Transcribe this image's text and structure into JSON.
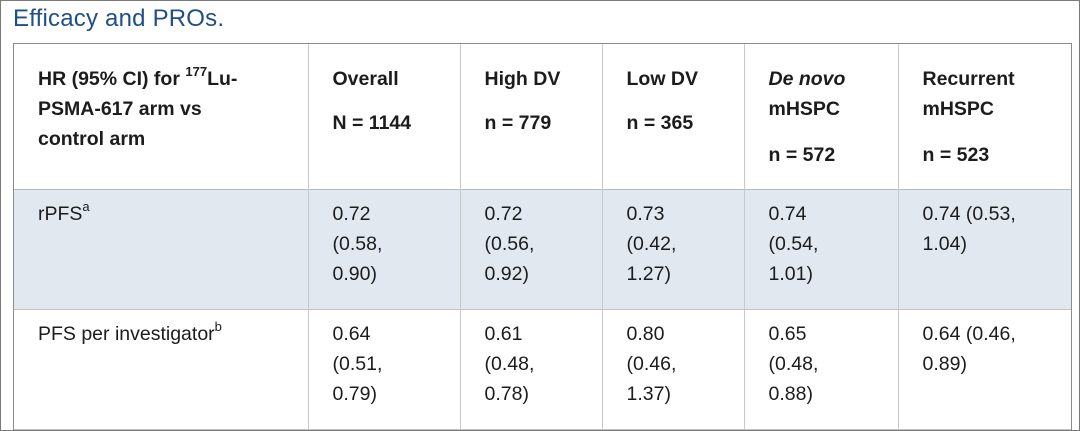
{
  "page": {
    "title": "Efficacy and PROs."
  },
  "table": {
    "header": {
      "col0": {
        "line1_pre": "HR (95% CI) for ",
        "line1_sup": "177",
        "line1_post": "Lu-",
        "line2": "PSMA-617 arm vs",
        "line3": "control arm"
      },
      "col1": {
        "label": "Overall",
        "n": "N = 1144"
      },
      "col2": {
        "label": "High DV",
        "n": "n = 779"
      },
      "col3": {
        "label": "Low DV",
        "n": "n = 365"
      },
      "col4": {
        "label_italic": "De novo",
        "label2": "mHSPC",
        "n": "n = 572"
      },
      "col5": {
        "label": "Recurrent",
        "label2": "mHSPC",
        "n": "n = 523"
      }
    },
    "rows": [
      {
        "label": "rPFS",
        "sup": "a",
        "cells": [
          [
            "0.72",
            "(0.58,",
            "0.90)"
          ],
          [
            "0.72",
            "(0.56,",
            "0.92)"
          ],
          [
            "0.73",
            "(0.42,",
            "1.27)"
          ],
          [
            "0.74",
            "(0.54,",
            "1.01)"
          ],
          [
            "0.74 (0.53,",
            "1.04)",
            ""
          ]
        ]
      },
      {
        "label": "PFS per investigator",
        "sup": "b",
        "cells": [
          [
            "0.64",
            "(0.51,",
            "0.79)"
          ],
          [
            "0.61",
            "(0.48,",
            "0.78)"
          ],
          [
            "0.80",
            "(0.46,",
            "1.37)"
          ],
          [
            "0.65",
            "(0.48,",
            "0.88)"
          ],
          [
            "0.64 (0.46,",
            "0.89)",
            ""
          ]
        ]
      }
    ]
  }
}
